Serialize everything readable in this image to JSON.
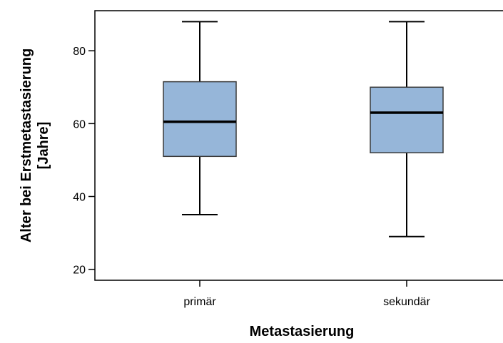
{
  "chart_data": {
    "type": "boxplot",
    "title": "",
    "xlabel": "Metastasierung",
    "ylabel": [
      "Alter bei Erstmetastasierung",
      "[Jahre]"
    ],
    "ylim": [
      17,
      91
    ],
    "yticks": [
      20,
      40,
      60,
      80
    ],
    "grid": false,
    "legend": "none",
    "box_color": "#96b6d9",
    "categories": [
      "primär",
      "sekundär"
    ],
    "boxes": [
      {
        "category": "primär",
        "min": 35,
        "q1": 51,
        "median": 60.5,
        "q3": 71.5,
        "max": 88
      },
      {
        "category": "sekundär",
        "min": 29,
        "q1": 52,
        "median": 63,
        "q3": 70,
        "max": 88
      }
    ]
  }
}
